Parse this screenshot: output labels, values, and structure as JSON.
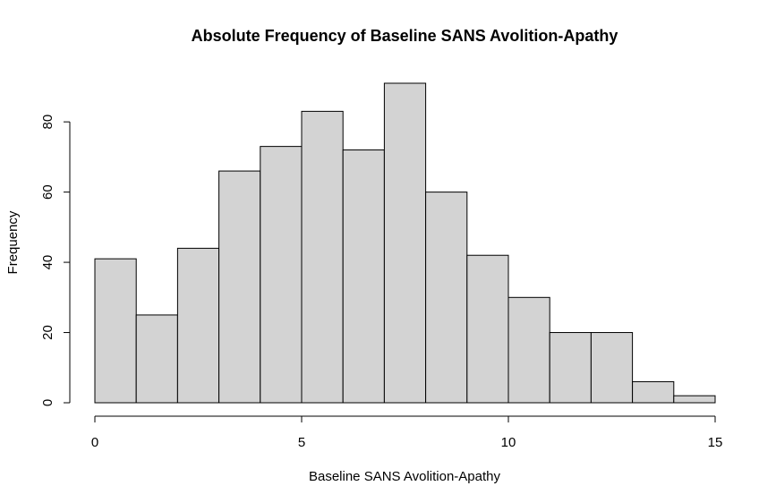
{
  "chart_data": {
    "type": "bar",
    "title": "Absolute Frequency of Baseline SANS Avolition-Apathy",
    "xlabel": "Baseline SANS Avolition-Apathy",
    "ylabel": "Frequency",
    "bins": [
      {
        "start": 0,
        "end": 1,
        "count": 41
      },
      {
        "start": 1,
        "end": 2,
        "count": 25
      },
      {
        "start": 2,
        "end": 3,
        "count": 44
      },
      {
        "start": 3,
        "end": 4,
        "count": 66
      },
      {
        "start": 4,
        "end": 5,
        "count": 73
      },
      {
        "start": 5,
        "end": 6,
        "count": 83
      },
      {
        "start": 6,
        "end": 7,
        "count": 72
      },
      {
        "start": 7,
        "end": 8,
        "count": 91
      },
      {
        "start": 8,
        "end": 9,
        "count": 60
      },
      {
        "start": 9,
        "end": 10,
        "count": 42
      },
      {
        "start": 10,
        "end": 11,
        "count": 30
      },
      {
        "start": 11,
        "end": 12,
        "count": 20
      },
      {
        "start": 12,
        "end": 13,
        "count": 20
      },
      {
        "start": 13,
        "end": 14,
        "count": 6
      },
      {
        "start": 14,
        "end": 15,
        "count": 2
      }
    ],
    "xlim": [
      0,
      15
    ],
    "ylim": [
      0,
      91
    ],
    "x_ticks": [
      "0",
      "5",
      "10",
      "15"
    ],
    "y_ticks": [
      "0",
      "20",
      "40",
      "60",
      "80"
    ],
    "grid": false,
    "colors": {
      "bar_fill": "#d3d3d3",
      "bar_stroke": "#000000"
    }
  }
}
